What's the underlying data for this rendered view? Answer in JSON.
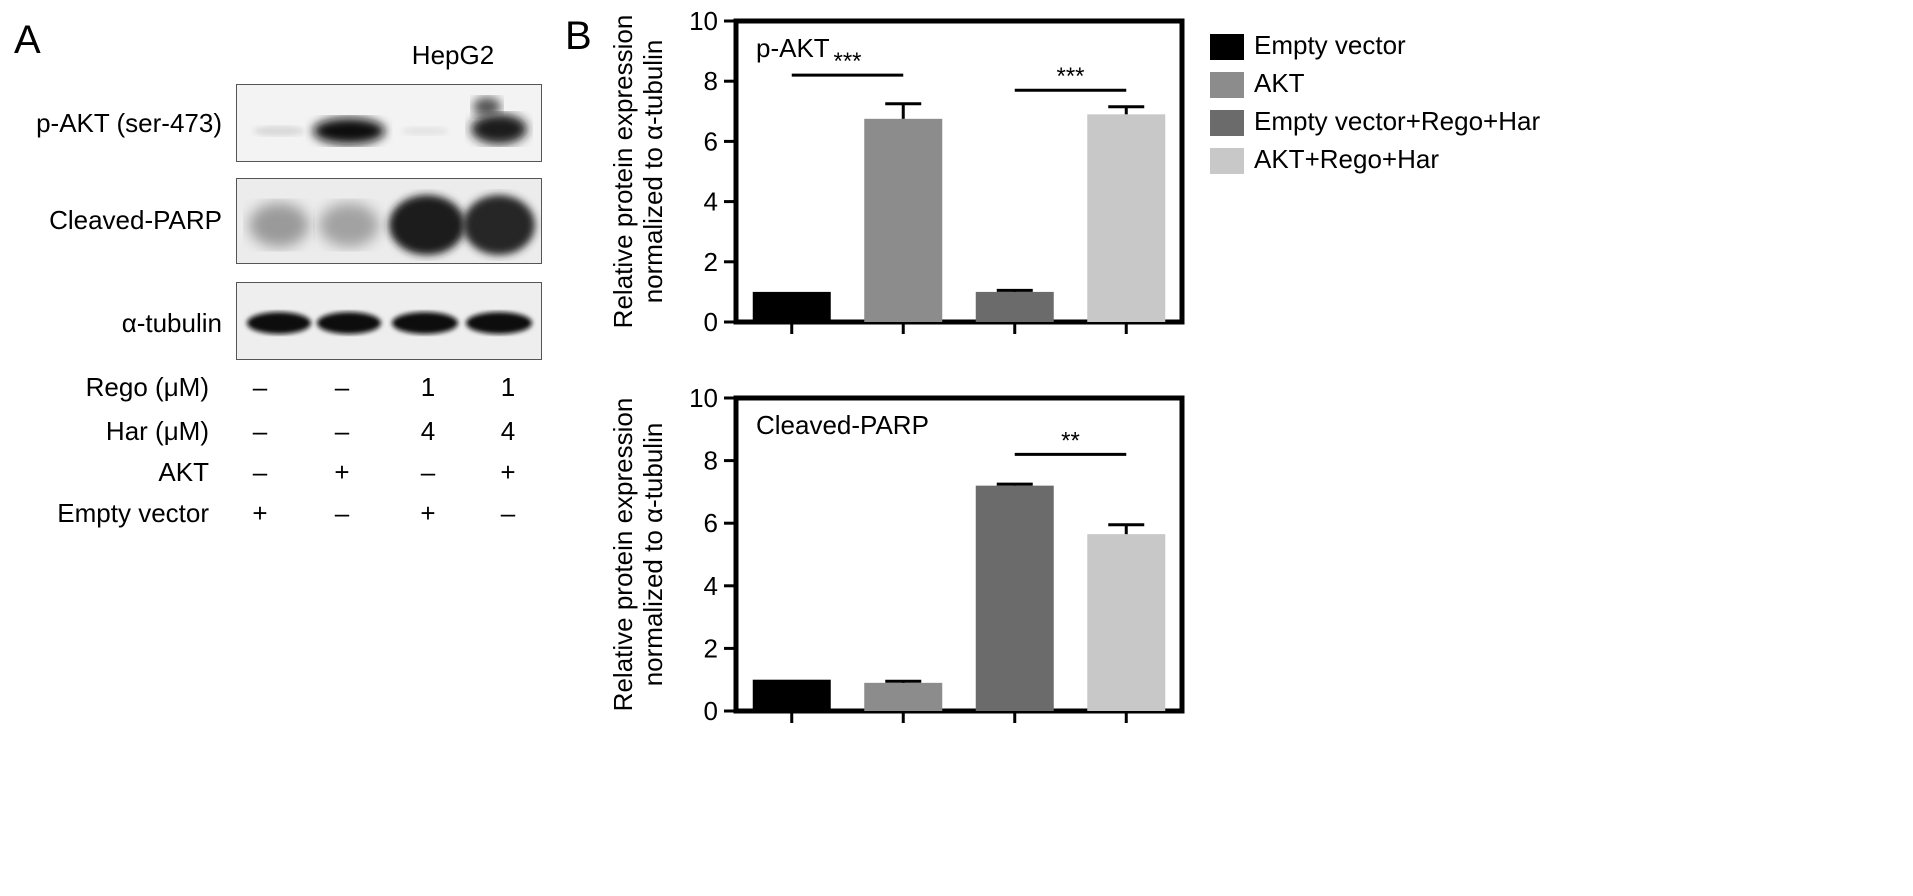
{
  "panel_a": {
    "letter": "A",
    "cell_line": "HepG2",
    "blots": [
      {
        "label": "p-AKT (ser-473)",
        "name": "blot-p-akt"
      },
      {
        "label": "Cleaved-PARP",
        "name": "blot-cleaved-parp"
      },
      {
        "label": "α-tubulin",
        "name": "blot-alpha-tubulin"
      }
    ],
    "conditions": [
      {
        "label": "Rego (μM)",
        "values": [
          "–",
          "–",
          "1",
          "1"
        ]
      },
      {
        "label": "Har (μM)",
        "values": [
          "–",
          "–",
          "4",
          "4"
        ]
      },
      {
        "label": "AKT",
        "values": [
          "–",
          "+",
          "–",
          "+"
        ]
      },
      {
        "label": "Empty vector",
        "values": [
          "+",
          "–",
          "+",
          "–"
        ]
      }
    ]
  },
  "panel_b": {
    "letter": "B",
    "legend": [
      {
        "label": "Empty vector",
        "color": "#000000"
      },
      {
        "label": "AKT",
        "color": "#8c8c8c"
      },
      {
        "label": "Empty vector+Rego+Har",
        "color": "#6b6b6b"
      },
      {
        "label": "AKT+Rego+Har",
        "color": "#c8c8c8"
      }
    ]
  },
  "chart_data": [
    {
      "type": "bar",
      "title": "p-AKT",
      "ylabel_line1": "Relative protein expression",
      "ylabel_line2": "normalized to α-tubulin",
      "ylim": [
        0,
        10
      ],
      "yticks": [
        "0",
        "2",
        "4",
        "6",
        "8",
        "10"
      ],
      "categories": [
        "Empty vector",
        "AKT",
        "Empty vector+Rego+Har",
        "AKT+Rego+Har"
      ],
      "values": [
        1.0,
        6.75,
        1.0,
        6.9
      ],
      "errors": [
        0,
        0.5,
        0.05,
        0.25
      ],
      "colors": [
        "#000000",
        "#8c8c8c",
        "#6b6b6b",
        "#c8c8c8"
      ],
      "significance": [
        {
          "from": 0,
          "to": 1,
          "label": "***",
          "y": 8.2
        },
        {
          "from": 2,
          "to": 3,
          "label": "***",
          "y": 7.7
        }
      ]
    },
    {
      "type": "bar",
      "title": "Cleaved-PARP",
      "ylabel_line1": "Relative protein expression",
      "ylabel_line2": "normalized to α-tubulin",
      "ylim": [
        0,
        10
      ],
      "yticks": [
        "0",
        "2",
        "4",
        "6",
        "8",
        "10"
      ],
      "categories": [
        "Empty vector",
        "AKT",
        "Empty vector+Rego+Har",
        "AKT+Rego+Har"
      ],
      "values": [
        1.0,
        0.9,
        7.2,
        5.65
      ],
      "errors": [
        0,
        0.05,
        0.05,
        0.3
      ],
      "colors": [
        "#000000",
        "#8c8c8c",
        "#6b6b6b",
        "#c8c8c8"
      ],
      "significance": [
        {
          "from": 2,
          "to": 3,
          "label": "**",
          "y": 8.2
        }
      ]
    }
  ]
}
